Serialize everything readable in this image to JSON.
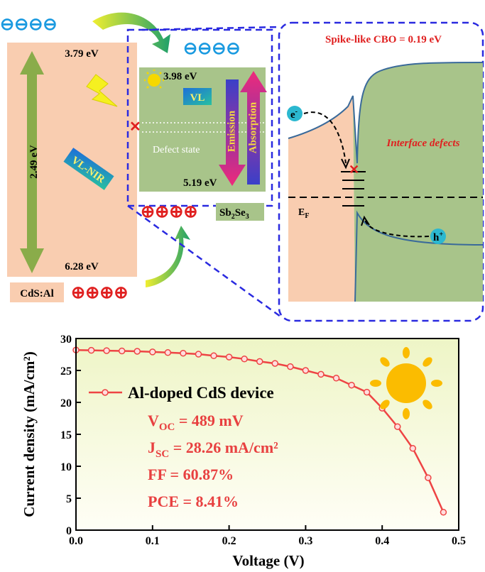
{
  "diagram": {
    "cds": {
      "cb": "3.79 eV",
      "vb": "6.28 eV",
      "gap": "2.49 eV",
      "band": "VL-NIR",
      "name": "CdS:Al",
      "electrons": "⊖⊖⊖⊖",
      "holes": "⊕⊕⊕⊕"
    },
    "sb2se3": {
      "cb": "3.98 eV",
      "vb": "5.19 eV",
      "band": "VL",
      "defect": "Defect state",
      "emission": "Emission",
      "absorption": "Absorption",
      "electrons": "⊖⊖⊖⊖",
      "holes": "⊕⊕⊕⊕",
      "name_parts": [
        "Sb",
        "2",
        "Se",
        "3"
      ]
    },
    "interface": {
      "title": "Spike-like CBO = 0.19 eV",
      "defects": "Interface defects",
      "electron": {
        "main": "e",
        "sup": "-"
      },
      "hole": {
        "main": "h",
        "sup": "+"
      },
      "fermi": {
        "main": "E",
        "sub": "F"
      }
    }
  },
  "chart_data": {
    "type": "line",
    "x": [
      0,
      0.02,
      0.04,
      0.06,
      0.08,
      0.1,
      0.12,
      0.14,
      0.16,
      0.18,
      0.2,
      0.22,
      0.24,
      0.26,
      0.28,
      0.3,
      0.32,
      0.34,
      0.36,
      0.38,
      0.4,
      0.42,
      0.44,
      0.46,
      0.48
    ],
    "series": [
      {
        "name": "Al-doped CdS device",
        "color": "#ee4444",
        "values": [
          28.2,
          28.15,
          28.1,
          28.05,
          28.0,
          27.9,
          27.8,
          27.7,
          27.55,
          27.3,
          27.1,
          26.8,
          26.4,
          26.1,
          25.6,
          25.0,
          24.4,
          23.8,
          22.7,
          21.6,
          19.1,
          16.2,
          12.8,
          8.2,
          2.8
        ]
      }
    ],
    "annotations": [
      {
        "main": "V",
        "sub": "OC",
        "rest": " = 489 mV"
      },
      {
        "main": "J",
        "sub": "SC",
        "rest": " = 28.26 mA/cm²"
      },
      {
        "main": "FF = 60.87%"
      },
      {
        "main": "PCE = 8.41%"
      }
    ],
    "xlabel": "Voltage (V)",
    "ylabel": "Current density (mA/cm²)",
    "xlim": [
      0,
      0.5
    ],
    "ylim": [
      0,
      30
    ],
    "xticks": [
      {
        "value": 0,
        "label": "0.0"
      },
      0.1,
      0.2,
      0.3,
      0.4,
      0.5
    ],
    "yticks": [
      0,
      5,
      10,
      15,
      20,
      25,
      30
    ]
  }
}
